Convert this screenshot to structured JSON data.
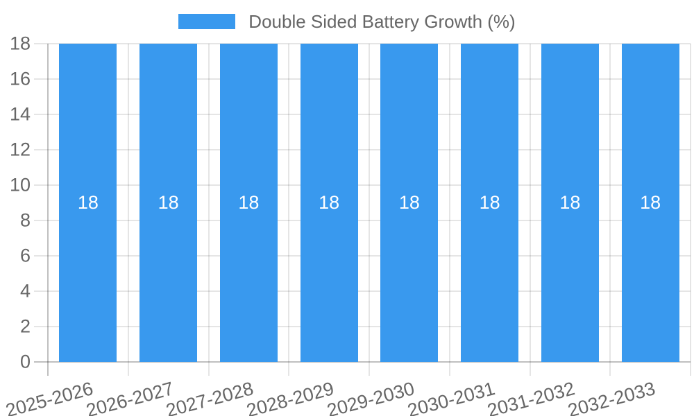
{
  "chart_data": {
    "type": "bar",
    "title": "Double Sided Battery Growth (%)",
    "categories": [
      "2025-2026",
      "2026-2027",
      "2027-2028",
      "2028-2029",
      "2029-2030",
      "2030-2031",
      "2031-2032",
      "2032-2033"
    ],
    "series": [
      {
        "name": "Double Sided Battery Growth (%)",
        "values": [
          18,
          18,
          18,
          18,
          18,
          18,
          18,
          18
        ]
      }
    ],
    "bar_labels": [
      "18",
      "18",
      "18",
      "18",
      "18",
      "18",
      "18",
      "18"
    ],
    "xlabel": "",
    "ylabel": "",
    "ylim": [
      0,
      18
    ],
    "yticks": [
      0,
      2,
      4,
      6,
      8,
      10,
      12,
      14,
      16,
      18
    ],
    "grid": true,
    "legend_position": "top",
    "colors": {
      "bar": "#3999ee",
      "bar_label": "#ffffff",
      "grid": "rgba(0,0,0,0.1)",
      "axis_zero_line": "rgba(0,0,0,0.25)",
      "tick_text": "#666666",
      "legend_text": "#666666",
      "background": "#ffffff"
    }
  },
  "legend": {
    "label": "Double Sided Battery Growth (%)"
  }
}
